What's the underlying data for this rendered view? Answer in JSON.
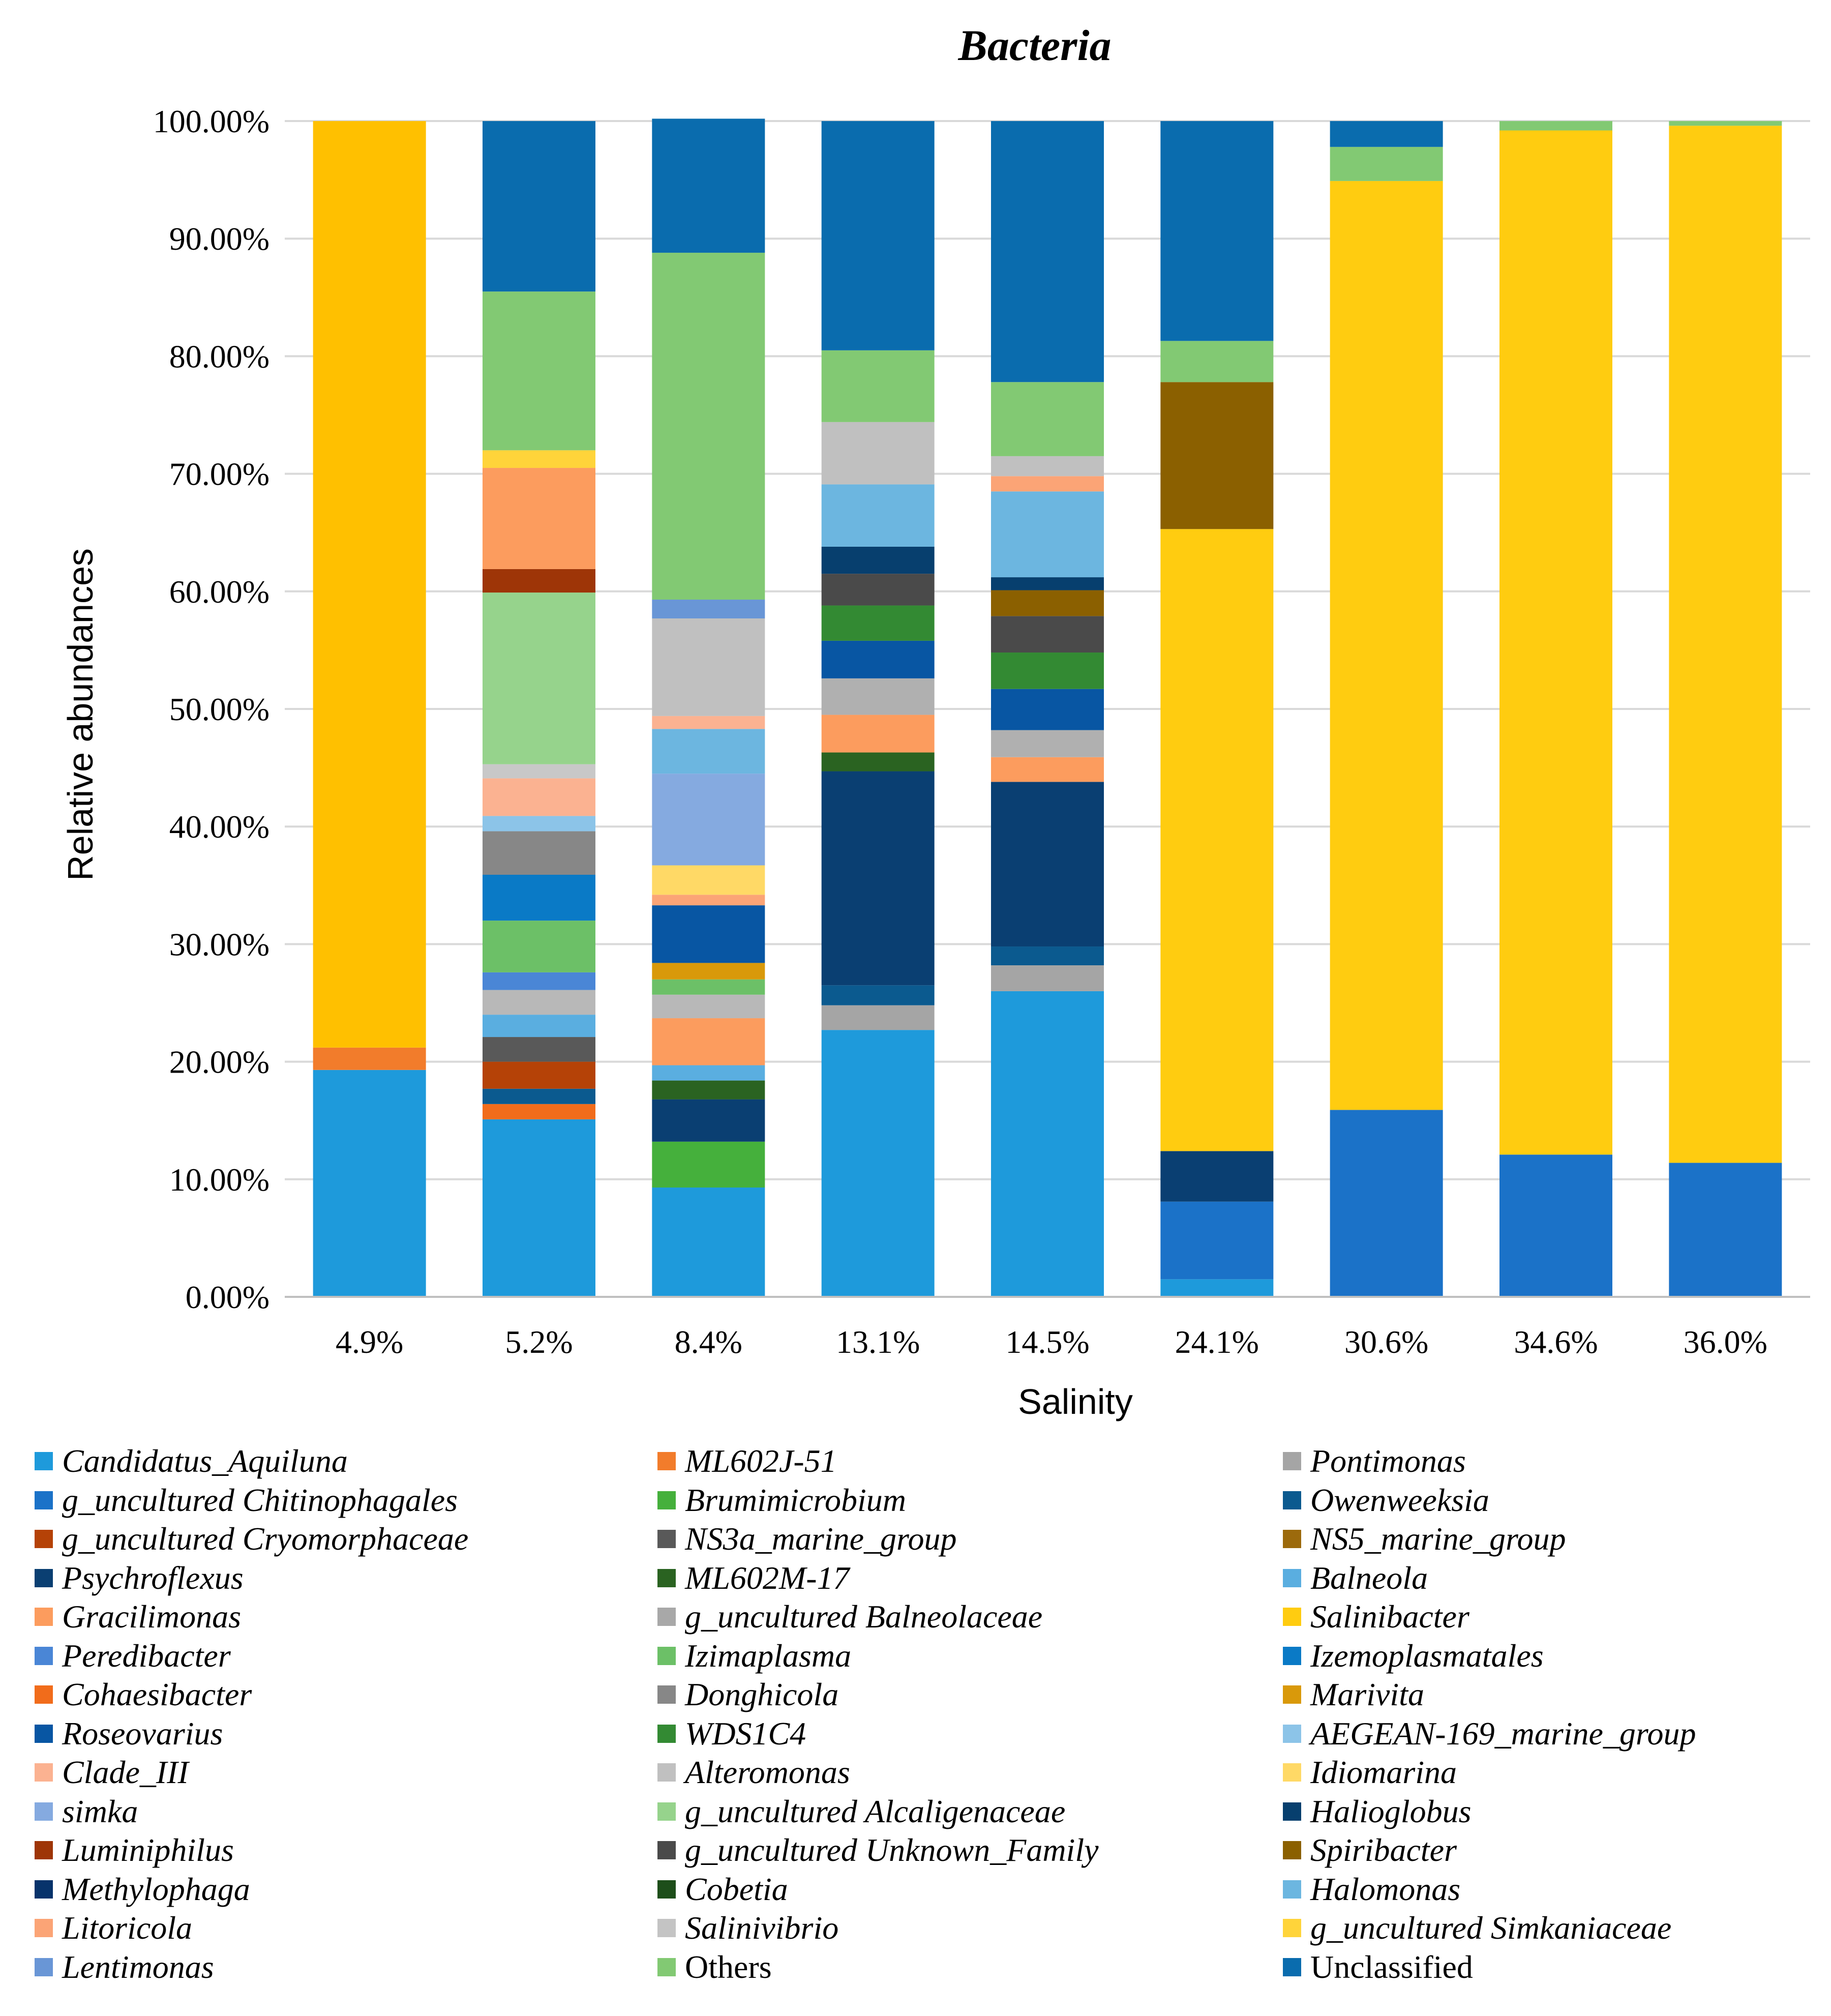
{
  "chart_data": {
    "type": "stacked-bar-100",
    "title": "Bacteria",
    "xlabel": "Salinity",
    "ylabel": "Relative abundances",
    "ylim": [
      0,
      100
    ],
    "y_ticks": [
      "0.00%",
      "10.00%",
      "20.00%",
      "30.00%",
      "40.00%",
      "50.00%",
      "60.00%",
      "70.00%",
      "80.00%",
      "90.00%",
      "100.00%"
    ],
    "y_tick_values": [
      0,
      10,
      20,
      30,
      40,
      50,
      60,
      70,
      80,
      90,
      100
    ],
    "grid": true,
    "legend_position": "bottom",
    "categories": [
      "4.9%",
      "5.2%",
      "8.4%",
      "13.1%",
      "14.5%",
      "24.1%",
      "30.6%",
      "34.6%",
      "36.0%"
    ],
    "legend": [
      {
        "name": "Candidatus_Aquiluna",
        "color": "#1E9ADB",
        "italic": true
      },
      {
        "name": "g_uncultured Chitinophagales",
        "color": "#1B72C8",
        "italic": true
      },
      {
        "name": "g_uncultured Cryomorphaceae",
        "color": "#B54207",
        "italic": true
      },
      {
        "name": "Psychroflexus",
        "color": "#0A3F72",
        "italic": true
      },
      {
        "name": "Gracilimonas",
        "color": "#FC9C5E",
        "italic": true
      },
      {
        "name": "Peredibacter",
        "color": "#4A86D6",
        "italic": true
      },
      {
        "name": "Cohaesibacter",
        "color": "#F16C1B",
        "italic": true
      },
      {
        "name": "Roseovarius",
        "color": "#0856A3",
        "italic": true
      },
      {
        "name": "Clade_III",
        "color": "#FBB291",
        "italic": true
      },
      {
        "name": "simka",
        "color": "#85AAE0",
        "italic": true
      },
      {
        "name": "Luminiphilus",
        "color": "#9E3507",
        "italic": true
      },
      {
        "name": "Methylophaga",
        "color": "#07336B",
        "italic": true
      },
      {
        "name": "Litoricola",
        "color": "#FBA476",
        "italic": true
      },
      {
        "name": "Lentimonas",
        "color": "#6996D6",
        "italic": true
      },
      {
        "name": "ML602J-51",
        "color": "#F27C2B",
        "italic": true
      },
      {
        "name": "Brumimicrobium",
        "color": "#45B03C",
        "italic": true
      },
      {
        "name": "NS3a_marine_group",
        "color": "#595959",
        "italic": true
      },
      {
        "name": "ML602M-17",
        "color": "#2A6321",
        "italic": true
      },
      {
        "name": "g_uncultured Balneolaceae",
        "color": "#A8A8A8",
        "italic": true
      },
      {
        "name": "Izimaplasma",
        "color": "#6CC067",
        "italic": true
      },
      {
        "name": "Donghicola",
        "color": "#878787",
        "italic": true
      },
      {
        "name": "WDS1C4",
        "color": "#338A33",
        "italic": true
      },
      {
        "name": "Alteromonas",
        "color": "#C0C0C0",
        "italic": true
      },
      {
        "name": "g_uncultured Alcaligenaceae",
        "color": "#96D38C",
        "italic": true
      },
      {
        "name": "g_uncultured Unknown_Family",
        "color": "#4A4A4A",
        "italic": true
      },
      {
        "name": "Cobetia",
        "color": "#1D4E1A",
        "italic": true
      },
      {
        "name": "Salinivibrio",
        "color": "#C4C4C4",
        "italic": true
      },
      {
        "name": "Others",
        "color": "#82C973",
        "italic": false
      },
      {
        "name": "Pontimonas",
        "color": "#A5A5A5",
        "italic": true
      },
      {
        "name": "Owenweeksia",
        "color": "#0B5A8F",
        "italic": true
      },
      {
        "name": "NS5_marine_group",
        "color": "#9C6A0C",
        "italic": true
      },
      {
        "name": "Balneola",
        "color": "#5AAEE0",
        "italic": true
      },
      {
        "name": "Salinibacter",
        "color": "#FFCC10",
        "italic": true
      },
      {
        "name": "Izemoplasmatales",
        "color": "#0A7AC6",
        "italic": true
      },
      {
        "name": "Marivita",
        "color": "#D9990A",
        "italic": true
      },
      {
        "name": "AEGEAN-169_marine_group",
        "color": "#8CC4E8",
        "italic": true
      },
      {
        "name": "Idiomarina",
        "color": "#FFD966",
        "italic": true
      },
      {
        "name": "Halioglobus",
        "color": "#073F6E",
        "italic": true
      },
      {
        "name": "Spiribacter",
        "color": "#8B6000",
        "italic": true
      },
      {
        "name": "Halomonas",
        "color": "#6CB6E0",
        "italic": true
      },
      {
        "name": "g_uncultured Simkaniaceae",
        "color": "#FFD43A",
        "italic": true
      },
      {
        "name": "Unclassified",
        "color": "#0A6CAE",
        "italic": false
      }
    ],
    "series": [
      {
        "category": "4.9%",
        "stack": [
          {
            "name": "Candidatus_Aquiluna",
            "value": 19.3,
            "color": "#1E9ADB"
          },
          {
            "name": "ML602J-51",
            "value": 1.9,
            "color": "#F27C2B"
          },
          {
            "name": "Salinibacter",
            "value": 78.8,
            "color": "#FFC000"
          }
        ]
      },
      {
        "category": "5.2%",
        "stack": [
          {
            "name": "Candidatus_Aquiluna",
            "value": 15.1,
            "color": "#1E9ADB"
          },
          {
            "name": "Cohaesibacter",
            "value": 1.3,
            "color": "#F16C1B"
          },
          {
            "name": "Owenweeksia",
            "value": 1.3,
            "color": "#0B5A8F"
          },
          {
            "name": "g_uncultured Cryomorphaceae",
            "value": 2.3,
            "color": "#B54207"
          },
          {
            "name": "NS3a_marine_group",
            "value": 2.1,
            "color": "#595959"
          },
          {
            "name": "Balneola",
            "value": 1.9,
            "color": "#5AAEE0"
          },
          {
            "name": "g_uncultured Balneolaceae",
            "value": 2.1,
            "color": "#B8B8B8"
          },
          {
            "name": "Peredibacter",
            "value": 1.5,
            "color": "#4A86D6"
          },
          {
            "name": "Izimaplasma",
            "value": 4.4,
            "color": "#6CC067"
          },
          {
            "name": "Izemoplasmatales",
            "value": 3.9,
            "color": "#0A7AC6"
          },
          {
            "name": "Donghicola",
            "value": 3.7,
            "color": "#878787"
          },
          {
            "name": "AEGEAN-169_marine_group",
            "value": 1.3,
            "color": "#8CC4E8"
          },
          {
            "name": "Clade_III",
            "value": 3.2,
            "color": "#FBB291"
          },
          {
            "name": "Alteromonas",
            "value": 1.2,
            "color": "#C8C8C8"
          },
          {
            "name": "g_uncultured Alcaligenaceae",
            "value": 14.6,
            "color": "#96D38C"
          },
          {
            "name": "Luminiphilus",
            "value": 2.0,
            "color": "#9E3507"
          },
          {
            "name": "Gracilimonas",
            "value": 8.6,
            "color": "#FC9C5E"
          },
          {
            "name": "g_uncultured Simkaniaceae",
            "value": 1.5,
            "color": "#FFD43A"
          },
          {
            "name": "Others",
            "value": 13.5,
            "color": "#82C973"
          },
          {
            "name": "Unclassified",
            "value": 14.5,
            "color": "#0A6CAE"
          }
        ]
      },
      {
        "category": "8.4%",
        "stack": [
          {
            "name": "Candidatus_Aquiluna",
            "value": 9.3,
            "color": "#1E9ADB"
          },
          {
            "name": "Brumimicrobium",
            "value": 3.9,
            "color": "#45B03C"
          },
          {
            "name": "Psychroflexus",
            "value": 3.6,
            "color": "#0A3F72"
          },
          {
            "name": "ML602M-17",
            "value": 1.6,
            "color": "#2A6321"
          },
          {
            "name": "Balneola",
            "value": 1.3,
            "color": "#5AAEE0"
          },
          {
            "name": "Gracilimonas",
            "value": 4.0,
            "color": "#FC9C5E"
          },
          {
            "name": "g_uncultured Balneolaceae",
            "value": 2.0,
            "color": "#B8B8B8"
          },
          {
            "name": "Izimaplasma",
            "value": 1.3,
            "color": "#6CC067"
          },
          {
            "name": "Marivita",
            "value": 1.4,
            "color": "#D9990A"
          },
          {
            "name": "Roseovarius",
            "value": 4.9,
            "color": "#0856A3"
          },
          {
            "name": "Litoricola",
            "value": 0.9,
            "color": "#FBA476"
          },
          {
            "name": "Idiomarina",
            "value": 2.5,
            "color": "#FFD966"
          },
          {
            "name": "simka",
            "value": 7.8,
            "color": "#85AAE0"
          },
          {
            "name": "Halomonas",
            "value": 3.8,
            "color": "#6CB6E0"
          },
          {
            "name": "Clade_III",
            "value": 1.1,
            "color": "#FBB291"
          },
          {
            "name": "Alteromonas",
            "value": 8.3,
            "color": "#C0C0C0"
          },
          {
            "name": "Lentimonas",
            "value": 1.6,
            "color": "#6996D6"
          },
          {
            "name": "Others",
            "value": 29.5,
            "color": "#82C973"
          },
          {
            "name": "Unclassified",
            "value": 11.4,
            "color": "#0A6CAE"
          }
        ]
      },
      {
        "category": "13.1%",
        "stack": [
          {
            "name": "Candidatus_Aquiluna",
            "value": 22.7,
            "color": "#1E9ADB"
          },
          {
            "name": "Pontimonas",
            "value": 2.1,
            "color": "#A5A5A5"
          },
          {
            "name": "Owenweeksia",
            "value": 1.7,
            "color": "#0B5A8F"
          },
          {
            "name": "Psychroflexus",
            "value": 18.2,
            "color": "#0A3F72"
          },
          {
            "name": "ML602M-17",
            "value": 1.6,
            "color": "#2A6321"
          },
          {
            "name": "Gracilimonas",
            "value": 3.2,
            "color": "#FC9C5E"
          },
          {
            "name": "g_uncultured Balneolaceae",
            "value": 3.1,
            "color": "#B0B0B0"
          },
          {
            "name": "Roseovarius",
            "value": 3.2,
            "color": "#0856A3"
          },
          {
            "name": "WDS1C4",
            "value": 3.0,
            "color": "#338A33"
          },
          {
            "name": "NS3a_marine_group",
            "value": 2.7,
            "color": "#4A4A4A"
          },
          {
            "name": "Halioglobus",
            "value": 2.3,
            "color": "#073F6E"
          },
          {
            "name": "Halomonas",
            "value": 5.3,
            "color": "#6CB6E0"
          },
          {
            "name": "Alteromonas",
            "value": 5.3,
            "color": "#C0C0C0"
          },
          {
            "name": "Others",
            "value": 6.1,
            "color": "#82C973"
          },
          {
            "name": "Unclassified",
            "value": 19.5,
            "color": "#0A6CAE"
          }
        ]
      },
      {
        "category": "14.5%",
        "stack": [
          {
            "name": "Candidatus_Aquiluna",
            "value": 26.0,
            "color": "#1E9ADB"
          },
          {
            "name": "Pontimonas",
            "value": 2.2,
            "color": "#A5A5A5"
          },
          {
            "name": "Owenweeksia",
            "value": 1.6,
            "color": "#0B5A8F"
          },
          {
            "name": "Psychroflexus",
            "value": 14.0,
            "color": "#0A3F72"
          },
          {
            "name": "Gracilimonas",
            "value": 2.1,
            "color": "#FC9C5E"
          },
          {
            "name": "g_uncultured Balneolaceae",
            "value": 2.3,
            "color": "#B0B0B0"
          },
          {
            "name": "Roseovarius",
            "value": 3.5,
            "color": "#0856A3"
          },
          {
            "name": "WDS1C4",
            "value": 3.1,
            "color": "#338A33"
          },
          {
            "name": "NS3a_marine_group",
            "value": 3.1,
            "color": "#4A4A4A"
          },
          {
            "name": "Spiribacter",
            "value": 2.2,
            "color": "#8B6000"
          },
          {
            "name": "Halioglobus",
            "value": 1.1,
            "color": "#073F6E"
          },
          {
            "name": "Halomonas",
            "value": 7.3,
            "color": "#6CB6E0"
          },
          {
            "name": "Litoricola",
            "value": 1.3,
            "color": "#FBA476"
          },
          {
            "name": "Alteromonas",
            "value": 1.7,
            "color": "#C0C0C0"
          },
          {
            "name": "Others",
            "value": 6.3,
            "color": "#82C973"
          },
          {
            "name": "Unclassified",
            "value": 22.2,
            "color": "#0A6CAE"
          }
        ]
      },
      {
        "category": "24.1%",
        "stack": [
          {
            "name": "Candidatus_Aquiluna",
            "value": 1.5,
            "color": "#1E9ADB"
          },
          {
            "name": "g_uncultured Chitinophagales",
            "value": 6.6,
            "color": "#1B72C8"
          },
          {
            "name": "Psychroflexus",
            "value": 4.3,
            "color": "#0A3F72"
          },
          {
            "name": "Salinibacter",
            "value": 52.9,
            "color": "#FFCC10"
          },
          {
            "name": "Spiribacter",
            "value": 12.5,
            "color": "#8B6000"
          },
          {
            "name": "Others",
            "value": 3.5,
            "color": "#82C973"
          },
          {
            "name": "Unclassified",
            "value": 18.7,
            "color": "#0A6CAE"
          }
        ]
      },
      {
        "category": "30.6%",
        "stack": [
          {
            "name": "g_uncultured Chitinophagales",
            "value": 15.9,
            "color": "#1B72C8"
          },
          {
            "name": "Salinibacter",
            "value": 79.0,
            "color": "#FFCC10"
          },
          {
            "name": "Others",
            "value": 2.9,
            "color": "#82C973"
          },
          {
            "name": "Unclassified",
            "value": 2.2,
            "color": "#0A6CAE"
          }
        ]
      },
      {
        "category": "34.6%",
        "stack": [
          {
            "name": "g_uncultured Chitinophagales",
            "value": 12.1,
            "color": "#1B72C8"
          },
          {
            "name": "Salinibacter",
            "value": 87.1,
            "color": "#FFCC10"
          },
          {
            "name": "Others",
            "value": 0.8,
            "color": "#82C973"
          }
        ]
      },
      {
        "category": "36.0%",
        "stack": [
          {
            "name": "g_uncultured Chitinophagales",
            "value": 11.4,
            "color": "#1B72C8"
          },
          {
            "name": "Salinibacter",
            "value": 88.2,
            "color": "#FFCC10"
          },
          {
            "name": "Others",
            "value": 0.4,
            "color": "#82C973"
          }
        ]
      }
    ]
  }
}
